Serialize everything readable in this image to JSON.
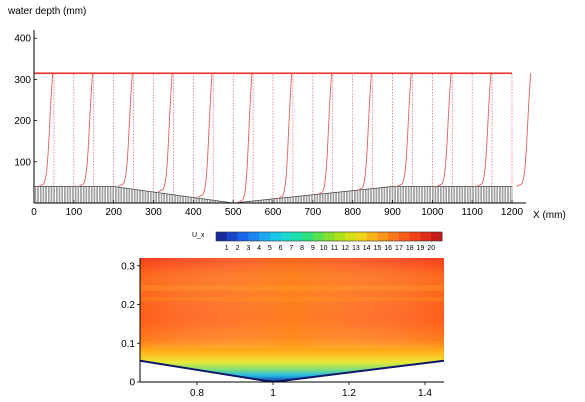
{
  "chart_data": [
    {
      "type": "line",
      "ylabel": "water depth (mm)",
      "xlabel": "X (mm)",
      "xlim": [
        0,
        1200
      ],
      "ylim": [
        0,
        420
      ],
      "x_ticks": [
        0,
        100,
        200,
        300,
        400,
        500,
        600,
        700,
        800,
        900,
        1000,
        1100,
        1200
      ],
      "y_ticks": [
        100,
        200,
        300,
        400
      ],
      "water_surface": 315,
      "bed_profile": {
        "x": [
          0,
          200,
          500,
          900,
          1200
        ],
        "y": [
          40,
          40,
          0,
          40,
          40
        ]
      },
      "profile_stations": [
        0,
        50,
        100,
        150,
        200,
        250,
        300,
        350,
        400,
        450,
        500,
        550,
        600,
        650,
        700,
        750,
        800,
        850,
        900,
        950,
        1000,
        1050,
        1100,
        1150,
        1200
      ],
      "profile_scale_mm": 42,
      "colors": {
        "surface": "#e8403a",
        "profile": "#e06060",
        "bed": "#555555"
      }
    },
    {
      "type": "heatmap",
      "xlim": [
        0.65,
        1.45
      ],
      "ylim": [
        0,
        0.32
      ],
      "x_ticks": [
        0.8,
        1,
        1.2,
        1.4
      ],
      "x_tick_labels": [
        "0.8",
        "1",
        "1.2",
        "1.4"
      ],
      "y_ticks": [
        0,
        0.1,
        0.2,
        0.3
      ],
      "y_tick_labels": [
        "0",
        "0.1",
        "0.2",
        "0.3"
      ],
      "bed_profile": {
        "x": [
          0.65,
          1.0,
          1.45
        ],
        "y": [
          0.055,
          0.0,
          0.055
        ]
      },
      "colorbar": {
        "title": "U_x",
        "range": [
          0,
          21
        ],
        "labels": [
          "1",
          "2",
          "3",
          "4",
          "5",
          "6",
          "7",
          "8",
          "9",
          "10",
          "11",
          "12",
          "13",
          "14",
          "15",
          "16",
          "17",
          "18",
          "19",
          "20"
        ]
      }
    }
  ]
}
